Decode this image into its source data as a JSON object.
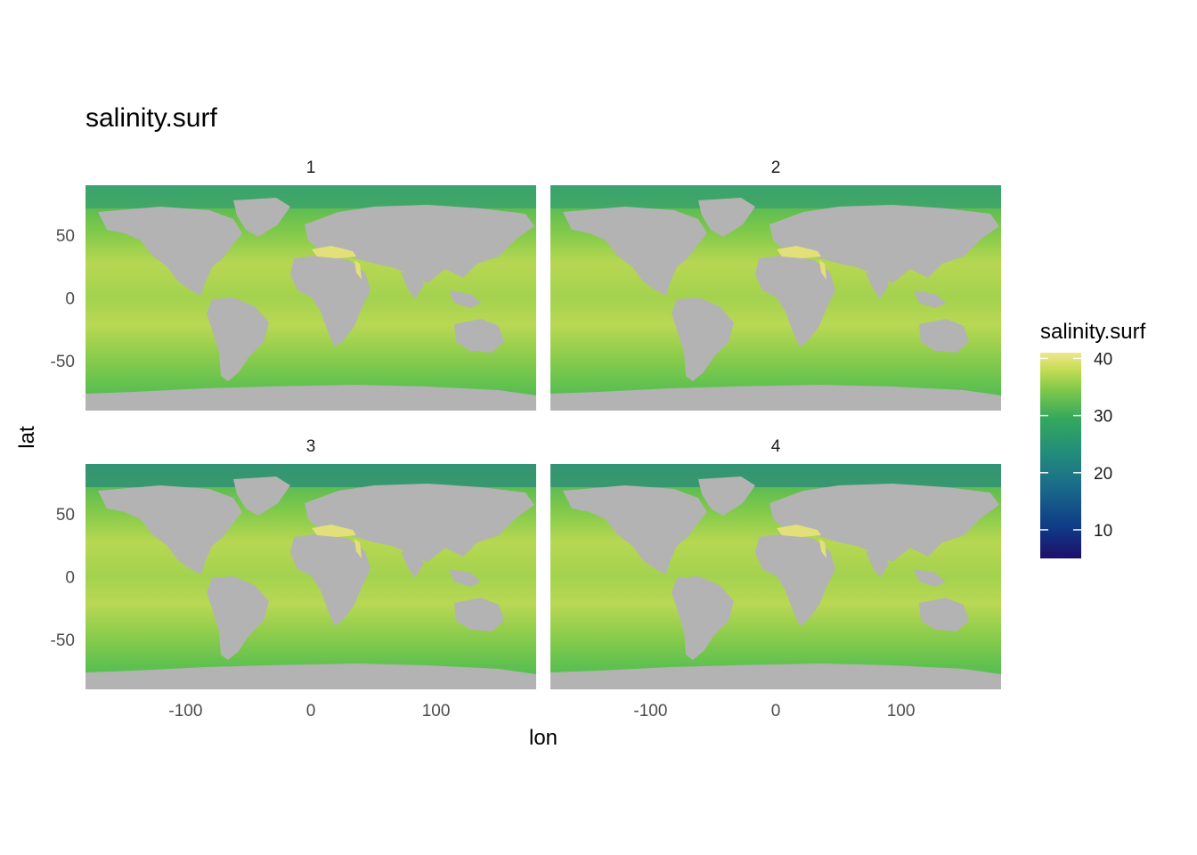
{
  "chart_data": {
    "type": "heatmap",
    "title": "salinity.surf",
    "xlabel": "lon",
    "ylabel": "lat",
    "xlim": [
      -180,
      180
    ],
    "ylim": [
      -90,
      90
    ],
    "x_ticks": [
      -100,
      0,
      100
    ],
    "y_ticks": [
      -50,
      0,
      50
    ],
    "grid": false,
    "land_color": "#b3b3b3",
    "facets": [
      {
        "label": "1"
      },
      {
        "label": "2"
      },
      {
        "label": "3"
      },
      {
        "label": "4"
      }
    ],
    "legend": {
      "title": "salinity.surf",
      "placement": "right",
      "ticks": [
        40,
        30,
        20,
        10
      ],
      "limits": [
        5,
        41
      ],
      "colors": [
        "#1d0f6a",
        "#0f3a87",
        "#1a6b8a",
        "#238e7a",
        "#34a85d",
        "#5cbe47",
        "#a8d44b",
        "#f0e68c"
      ]
    }
  }
}
